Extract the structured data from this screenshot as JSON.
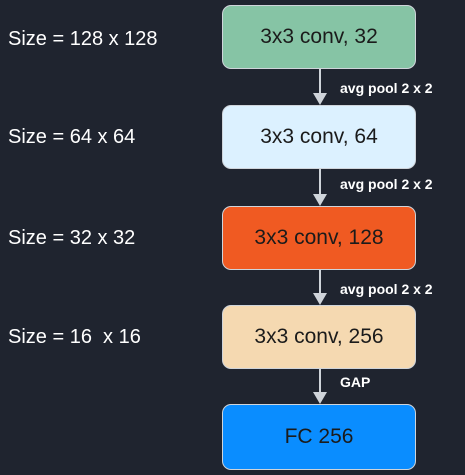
{
  "sizes": [
    "Size = 128 x 128",
    "Size = 64 x 64",
    "Size = 32 x 32",
    "Size = 16  x 16"
  ],
  "blocks": [
    {
      "label": "3x3 conv, 32",
      "color": "#86c4a5"
    },
    {
      "label": "3x3 conv, 64",
      "color": "#dcf1ff"
    },
    {
      "label": "3x3 conv, 128",
      "color": "#f05a22"
    },
    {
      "label": "3x3 conv, 256",
      "color": "#f5d9b1"
    },
    {
      "label": "FC 256",
      "color": "#0a8dff"
    }
  ],
  "ops": [
    "avg pool 2 x 2",
    "avg pool 2 x 2",
    "avg pool 2 x 2",
    "GAP"
  ]
}
